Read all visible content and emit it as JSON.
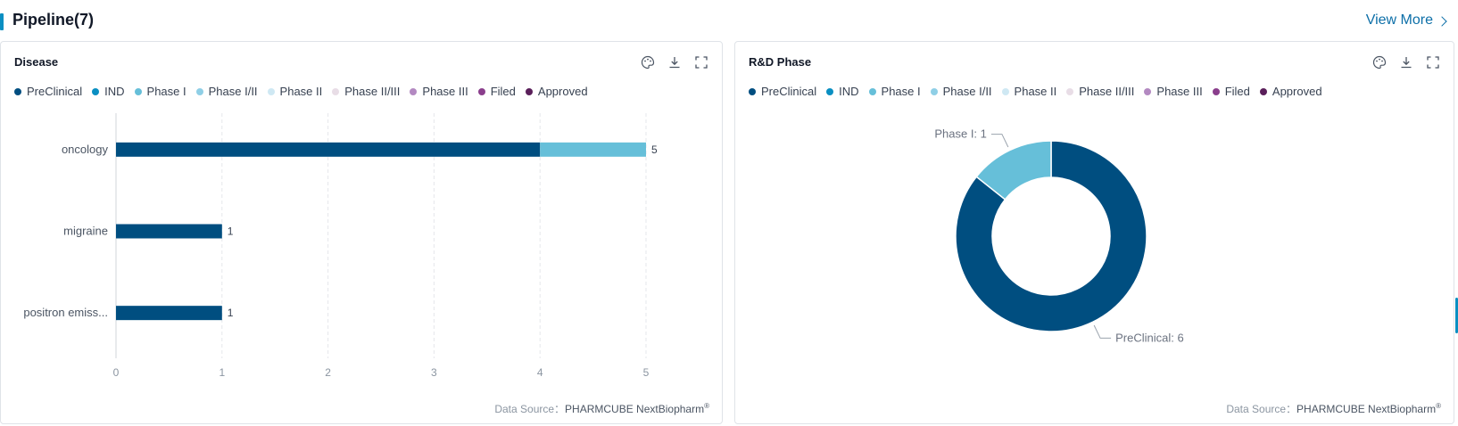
{
  "header": {
    "title": "Pipeline(7)",
    "view_more": "View More"
  },
  "phase_legend": [
    {
      "label": "PreClinical",
      "color": "#004e80"
    },
    {
      "label": "IND",
      "color": "#0a8fc2"
    },
    {
      "label": "Phase I",
      "color": "#66bfd9"
    },
    {
      "label": "Phase I/II",
      "color": "#8fcfe6"
    },
    {
      "label": "Phase II",
      "color": "#cfe8f3"
    },
    {
      "label": "Phase II/III",
      "color": "#e8dde6"
    },
    {
      "label": "Phase III",
      "color": "#b389c1"
    },
    {
      "label": "Filed",
      "color": "#8a3e8c"
    },
    {
      "label": "Approved",
      "color": "#5a1f5a"
    }
  ],
  "disease_card": {
    "title": "Disease",
    "source_prefix": "Data Source：",
    "source_brand": "PHARMCUBE NextBiopharm",
    "source_mark": "®"
  },
  "phase_card": {
    "title": "R&D Phase",
    "source_prefix": "Data Source：",
    "source_brand": "PHARMCUBE NextBiopharm",
    "source_mark": "®"
  },
  "icons": {
    "palette": "palette-icon",
    "download": "download-icon",
    "fullscreen": "fullscreen-icon"
  },
  "chart_data": [
    {
      "type": "bar",
      "orientation": "horizontal",
      "stacked": true,
      "categories": [
        "oncology",
        "migraine",
        "positron emiss..."
      ],
      "series": [
        {
          "name": "PreClinical",
          "values": [
            4,
            1,
            1
          ]
        },
        {
          "name": "Phase I",
          "values": [
            1,
            0,
            0
          ]
        }
      ],
      "totals": [
        5,
        1,
        1
      ],
      "x_ticks": [
        0,
        1,
        2,
        3,
        4,
        5
      ],
      "xlim": [
        0,
        5
      ],
      "grid": "vertical-dashed",
      "legend": "top-left"
    },
    {
      "type": "pie",
      "donut": true,
      "slices": [
        {
          "label": "PreClinical",
          "value": 6,
          "display": "PreClinical: 6"
        },
        {
          "label": "Phase I",
          "value": 1,
          "display": "Phase I: 1"
        }
      ],
      "legend": "top-left"
    }
  ]
}
